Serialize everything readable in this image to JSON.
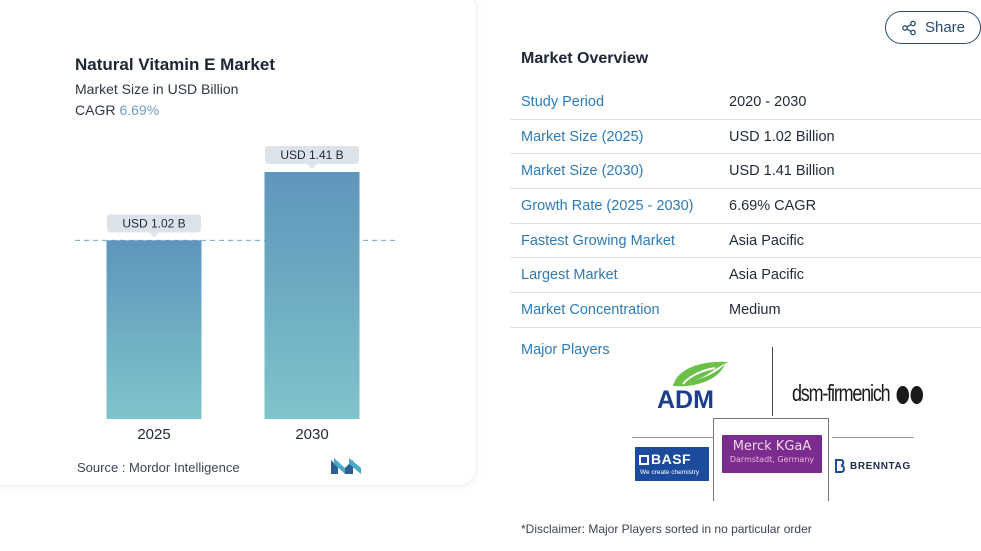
{
  "chart": {
    "title": "Natural Vitamin E Market",
    "subtitle": "Market Size in USD Billion",
    "cagr_label": "CAGR",
    "cagr_value": "6.69%",
    "source_label": "Source :",
    "source_name": "Mordor Intelligence"
  },
  "chart_data": {
    "type": "bar",
    "categories": [
      "2025",
      "2030"
    ],
    "values": [
      1.02,
      1.41
    ],
    "data_labels": [
      "USD 1.02 B",
      "USD 1.41 B"
    ],
    "title": "Natural Vitamin E Market",
    "subtitle": "Market Size in USD Billion",
    "ylim": [
      0,
      1.41
    ],
    "reference_line": 1.02,
    "grid": false,
    "bar_color_top": "#5f95bb",
    "bar_color_bottom": "#7fc4cb"
  },
  "share": {
    "label": "Share"
  },
  "overview": {
    "title": "Market Overview",
    "rows": [
      {
        "label": "Study Period",
        "value": "2020 - 2030"
      },
      {
        "label": "Market Size (2025)",
        "value": "USD 1.02 Billion"
      },
      {
        "label": "Market Size (2030)",
        "value": "USD 1.41 Billion"
      },
      {
        "label": "Growth Rate (2025 - 2030)",
        "value": "6.69% CAGR"
      },
      {
        "label": "Fastest Growing Market",
        "value": "Asia Pacific"
      },
      {
        "label": "Largest Market",
        "value": "Asia Pacific"
      },
      {
        "label": "Market Concentration",
        "value": "Medium"
      }
    ],
    "major_players_label": "Major Players",
    "players": {
      "adm": "ADM",
      "dsm": "dsm-firmenich",
      "basf": "BASF",
      "basf_tagline": "We create chemistry",
      "merck": "Merck KGaA",
      "merck_sub": "Darmstadt, Germany",
      "brenntag": "BRENNTAG"
    },
    "disclaimer": "*Disclaimer: Major Players sorted in no particular order"
  },
  "colors": {
    "accent_blue": "#2e7bb8",
    "navy": "#2b4c6f",
    "adm_green": "#6cc04a",
    "adm_blue": "#1b3e8c",
    "basf_blue": "#1c4a9c",
    "merck_purple": "#7b2d8f"
  }
}
